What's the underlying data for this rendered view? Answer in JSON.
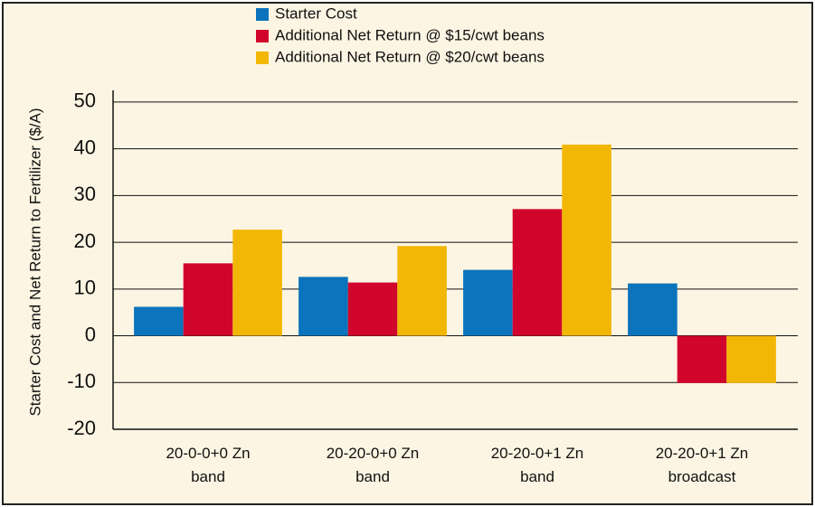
{
  "chart_data": {
    "type": "bar",
    "y_label": "Starter Cost and Net Return to Fertilizer ($/A)",
    "categories": [
      "20-0-0+0 Zn\nband",
      "20-20-0+0 Zn\nband",
      "20-20-0+1 Zn\nband",
      "20-20-0+1 Zn\nbroadcast"
    ],
    "series": [
      {
        "name": "Starter Cost",
        "color": "#0b74bc",
        "values": [
          6.2,
          12.6,
          14.1,
          11.2
        ]
      },
      {
        "name": "Additional Net Return @ $15/cwt beans",
        "color": "#d1042c",
        "values": [
          15.5,
          11.4,
          27.1,
          -10.1
        ]
      },
      {
        "name": "Additional Net Return @ $20/cwt beans",
        "color": "#f2b705",
        "values": [
          22.7,
          19.2,
          40.9,
          -10.1
        ]
      }
    ],
    "ylim": [
      -20,
      52.5
    ],
    "yticks": [
      -20,
      -10,
      0,
      10,
      20,
      30,
      40,
      50
    ],
    "grid": true,
    "legend": "top"
  }
}
